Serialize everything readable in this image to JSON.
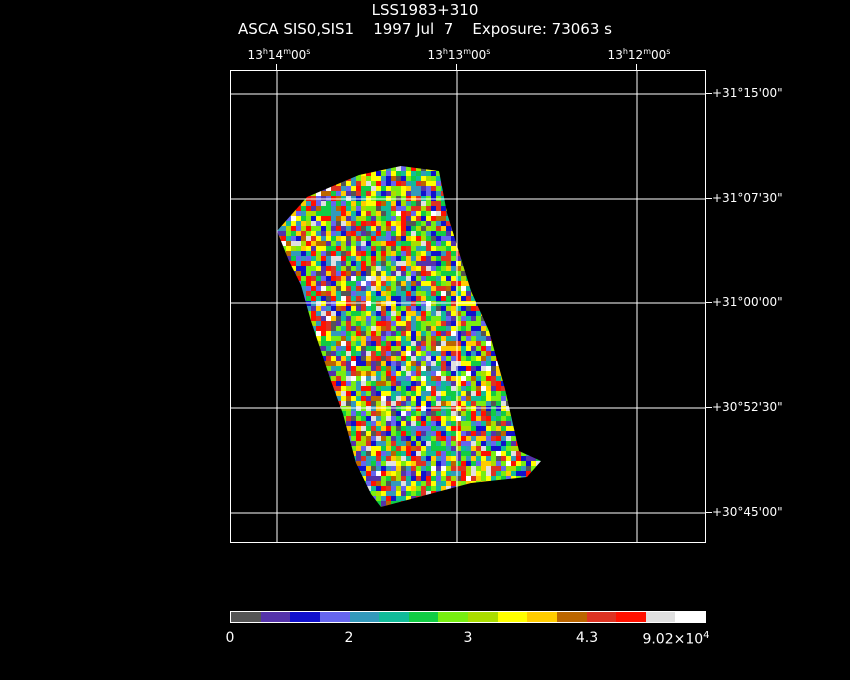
{
  "header": {
    "object": "LSS1983+310",
    "instrument": "ASCA SIS0,SIS1",
    "date": "1997 Jul  7",
    "exposure": "Exposure: 73063 s"
  },
  "ra_labels": [
    {
      "h": "13",
      "m": "14",
      "s": "00"
    },
    {
      "h": "13",
      "m": "13",
      "s": "00"
    },
    {
      "h": "13",
      "m": "12",
      "s": "00"
    }
  ],
  "dec_labels": [
    "+31°15'00\"",
    "+31°07'30\"",
    "+31°00'00\"",
    "+30°52'30\"",
    "+30°45'00\""
  ],
  "colorbar": {
    "colors": [
      "#555555",
      "#5533aa",
      "#1111cc",
      "#6666ee",
      "#3399bb",
      "#11bb99",
      "#11cc44",
      "#77ee11",
      "#aadd00",
      "#ffff00",
      "#ffcc00",
      "#bb6600",
      "#dd3322",
      "#ff1100",
      "#e0e0e0",
      "#ffffff"
    ],
    "labels": [
      "0",
      "2",
      "3",
      "4.3"
    ],
    "max_mantissa": "9.02×10",
    "max_exponent": "4"
  }
}
